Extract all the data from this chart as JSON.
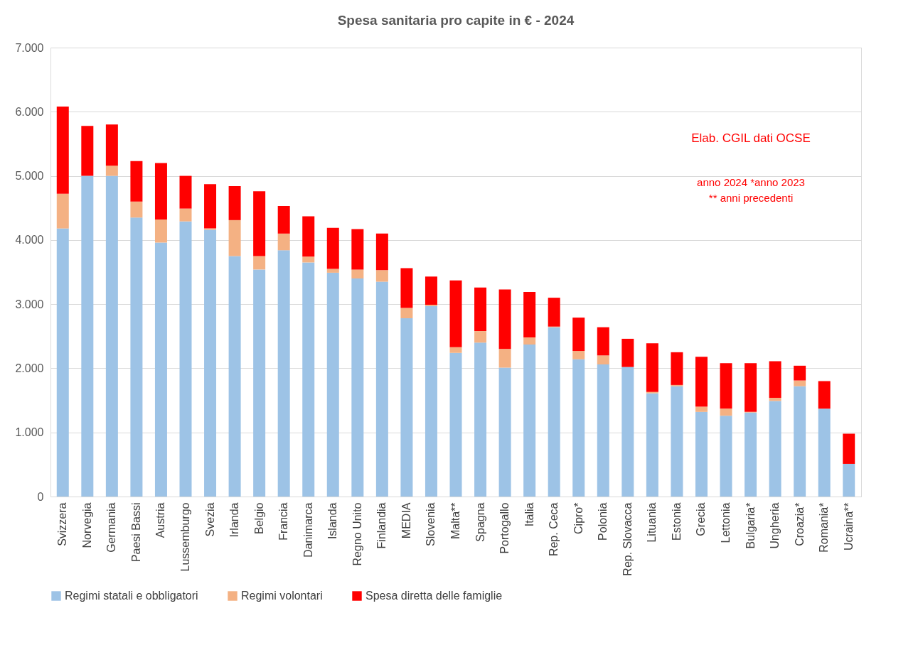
{
  "chart_data": {
    "type": "bar",
    "title": "Spesa sanitaria pro capite in € - 2024",
    "stacked": true,
    "categories": [
      "Svizzera",
      "Norvegia",
      "Germania",
      "Paesi Bassi",
      "Austria",
      "Lussemburgo",
      "Svezia",
      "Irlanda",
      "Belgio",
      "Francia",
      "Danimarca",
      "Islanda",
      "Regno Unito",
      "Finlandia",
      "MEDIA",
      "Slovenia",
      "Malta**",
      "Spagna",
      "Portogallo",
      "Italia",
      "Rep. Ceca",
      "Cipro*",
      "Polonia",
      "Rep. Slovacca",
      "Lituania",
      "Estonia",
      "Grecia",
      "Lettonia",
      "Bulgaria*",
      "Ungheria",
      "Croazia*",
      "Romania*",
      "Ucraina**"
    ],
    "series": [
      {
        "name": "Regimi statali e obbligatori",
        "color": "#9dc3e6",
        "values": [
          4180,
          5000,
          5000,
          4350,
          3960,
          4290,
          4160,
          3750,
          3540,
          3840,
          3650,
          3490,
          3400,
          3350,
          2780,
          2970,
          2240,
          2400,
          2010,
          2370,
          2640,
          2140,
          2060,
          2020,
          1610,
          1720,
          1320,
          1260,
          1310,
          1490,
          1720,
          1370,
          510
        ]
      },
      {
        "name": "Regimi volontari",
        "color": "#f4b183",
        "values": [
          540,
          0,
          160,
          250,
          360,
          200,
          20,
          560,
          210,
          260,
          90,
          60,
          140,
          180,
          160,
          20,
          90,
          180,
          290,
          110,
          10,
          130,
          140,
          0,
          20,
          20,
          80,
          110,
          10,
          50,
          90,
          0,
          0
        ]
      },
      {
        "name": "Spesa diretta delle famiglie",
        "color": "#ff0000",
        "values": [
          1360,
          780,
          640,
          630,
          880,
          510,
          690,
          530,
          1010,
          430,
          630,
          640,
          630,
          570,
          620,
          440,
          1040,
          680,
          930,
          710,
          450,
          520,
          440,
          440,
          760,
          510,
          780,
          710,
          760,
          570,
          230,
          430,
          470
        ]
      }
    ],
    "ylim": [
      0,
      7000
    ],
    "yticks": [
      {
        "value": 0,
        "label": "0"
      },
      {
        "value": 1000,
        "label": "1.000"
      },
      {
        "value": 2000,
        "label": "2.000"
      },
      {
        "value": 3000,
        "label": "3.000"
      },
      {
        "value": 4000,
        "label": "4.000"
      },
      {
        "value": 5000,
        "label": "5.000"
      },
      {
        "value": 6000,
        "label": "6.000"
      },
      {
        "value": 7000,
        "label": "7.000"
      }
    ],
    "grid": "y",
    "legend": "bottom",
    "annotations": [
      "Elab. CGIL dati OCSE",
      "anno 2024   *anno 2023",
      "** anni precedenti"
    ]
  }
}
